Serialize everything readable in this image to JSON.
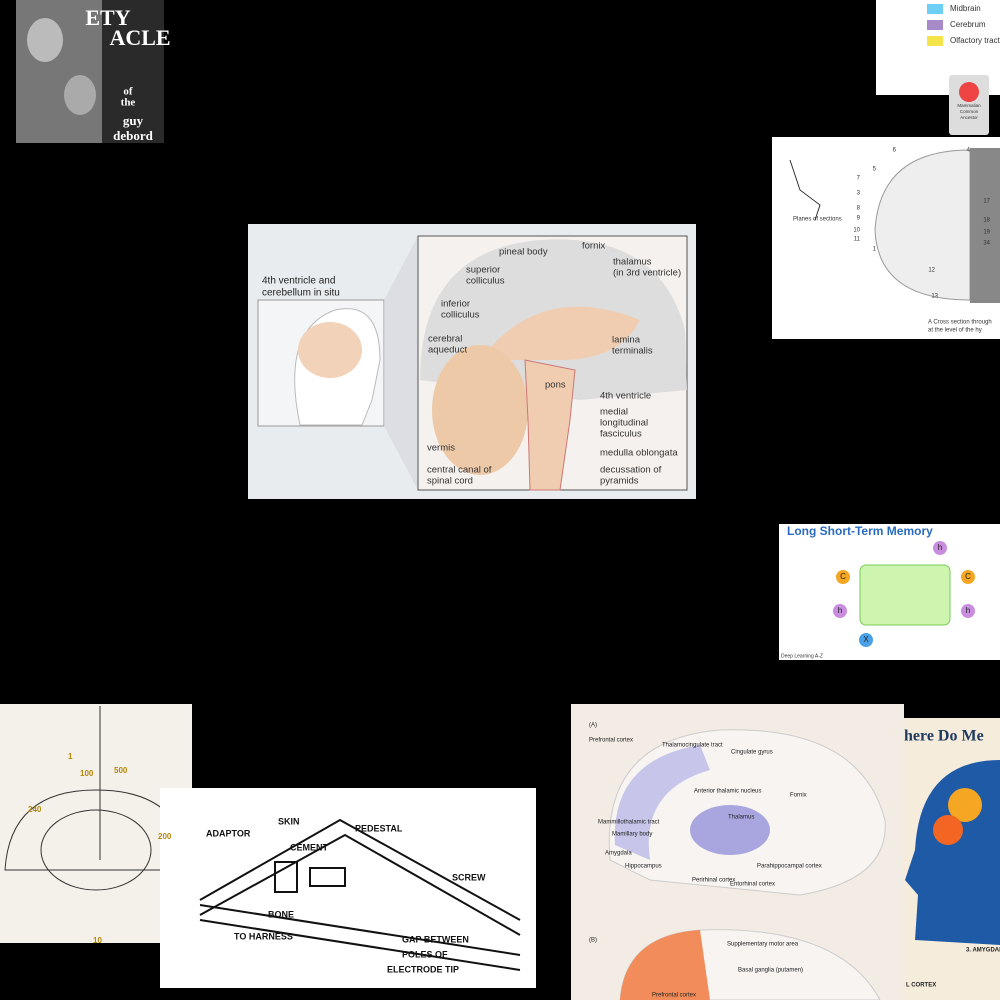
{
  "book": {
    "lines": [
      "ETY",
      "ACLE",
      "of",
      "the",
      "guy",
      "debord"
    ]
  },
  "legend": {
    "items": [
      {
        "label": "Midbrain",
        "color": "#6ecff6"
      },
      {
        "label": "Cerebrum",
        "color": "#a78bc8"
      },
      {
        "label": "Olfactory tract",
        "color": "#f5e34a"
      }
    ]
  },
  "logo": {
    "lines": [
      "Mammalian",
      "Common",
      "Ancestor"
    ]
  },
  "cross_section": {
    "planes": "Planes of sections",
    "caption": [
      "A  Cross section through",
      "at the level of the hy"
    ],
    "numbers": [
      "6",
      "5",
      "7",
      "3",
      "8",
      "9",
      "10",
      "11",
      "1",
      "12",
      "13",
      "4",
      "17",
      "18",
      "19",
      "34"
    ]
  },
  "brain": {
    "inset": [
      "4th ventricle and",
      "cerebellum in situ"
    ],
    "labels": [
      {
        "lines": [
          "pineal body"
        ]
      },
      {
        "lines": [
          "fornix"
        ]
      },
      {
        "lines": [
          "superior",
          "colliculus"
        ]
      },
      {
        "lines": [
          "thalamus",
          "(in 3rd ventricle)"
        ]
      },
      {
        "lines": [
          "inferior",
          "colliculus"
        ]
      },
      {
        "lines": [
          "cerebral",
          "aqueduct"
        ]
      },
      {
        "lines": [
          "lamina",
          "terminalis"
        ]
      },
      {
        "lines": [
          "pons"
        ]
      },
      {
        "lines": [
          "4th ventricle"
        ]
      },
      {
        "lines": [
          "medial",
          "longitudinal",
          "fasciculus"
        ]
      },
      {
        "lines": [
          "vermis"
        ]
      },
      {
        "lines": [
          "medulla oblongata"
        ]
      },
      {
        "lines": [
          "central canal of",
          "spinal cord"
        ]
      },
      {
        "lines": [
          "decussation of",
          "pyramids"
        ]
      }
    ]
  },
  "lstm": {
    "title": "Long Short-Term Memory",
    "footer": "Deep Learning A-Z",
    "nodes": [
      "C",
      "h",
      "h",
      "X",
      "h",
      "C"
    ]
  },
  "atlas": {
    "numbers": [
      "1",
      "100",
      "500",
      "240",
      "200",
      "10"
    ]
  },
  "electrode": {
    "labels": [
      "SKIN",
      "ADAPTOR",
      "CEMENT",
      "PEDESTAL",
      "SCREW",
      "BONE",
      "TO HARNESS",
      "GAP BETWEEN",
      "POLES OF",
      "ELECTRODE TIP"
    ]
  },
  "brain_color": {
    "labels": [
      "(A)",
      "Prefrontal cortex",
      "Thalamocingulate tract",
      "Cingulate gyrus",
      "Anterior thalamic nucleus",
      "Fornix",
      "Mammillothalamic tract",
      "Mamillary body",
      "Thalamus",
      "Amygdala",
      "Hippocampus",
      "Parahippocampal cortex",
      "Perirhinal cortex",
      "Entorhinal cortex",
      "(B)",
      "Supplementary motor area",
      "Basal ganglia (putamen)",
      "Prefrontal cortex"
    ]
  },
  "infographic": {
    "title": "here Do Me",
    "section": "3. AMYGDALA",
    "cortex": "L CORTEX"
  }
}
